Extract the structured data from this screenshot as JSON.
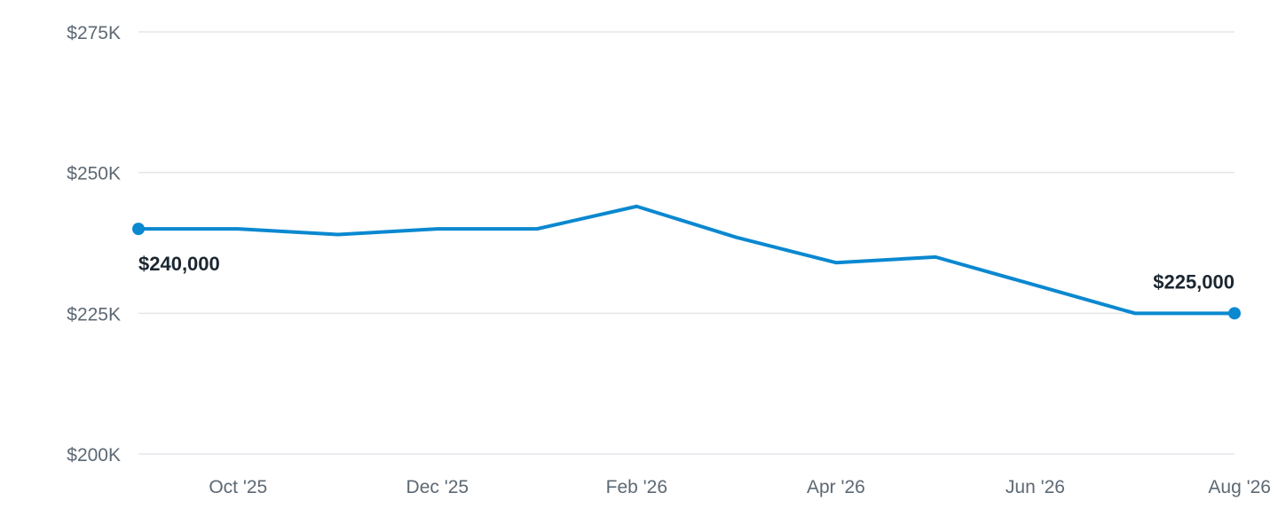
{
  "chart_data": {
    "type": "line",
    "title": "",
    "xlabel": "",
    "ylabel": "",
    "x": [
      "2025-09",
      "2025-10",
      "2025-11",
      "2025-12",
      "2026-01",
      "2026-02",
      "2026-03",
      "2026-04",
      "2026-05",
      "2026-06",
      "2026-07",
      "2026-08"
    ],
    "x_tick_labels": [
      {
        "x": "2025-10",
        "label": "Oct '25"
      },
      {
        "x": "2025-12",
        "label": "Dec '25"
      },
      {
        "x": "2026-02",
        "label": "Feb '26"
      },
      {
        "x": "2026-04",
        "label": "Apr '26"
      },
      {
        "x": "2026-06",
        "label": "Jun '26"
      },
      {
        "x": "2026-08",
        "label": "Aug '26"
      }
    ],
    "y_ticks": [
      {
        "value": 200000,
        "label": "$200K"
      },
      {
        "value": 225000,
        "label": "$225K"
      },
      {
        "value": 250000,
        "label": "$250K"
      },
      {
        "value": 275000,
        "label": "$275K"
      }
    ],
    "ylim": [
      200000,
      275000
    ],
    "grid": true,
    "series": [
      {
        "values": [
          240000,
          240000,
          239000,
          240000,
          240000,
          244000,
          238500,
          234000,
          235000,
          230000,
          225000,
          225000
        ],
        "color": "#0a88d0"
      }
    ],
    "annotations": [
      {
        "x": "2025-09",
        "value": 240000,
        "label": "$240,000",
        "position": "below"
      },
      {
        "x": "2026-08",
        "value": 225000,
        "label": "$225,000",
        "position": "above"
      }
    ]
  }
}
